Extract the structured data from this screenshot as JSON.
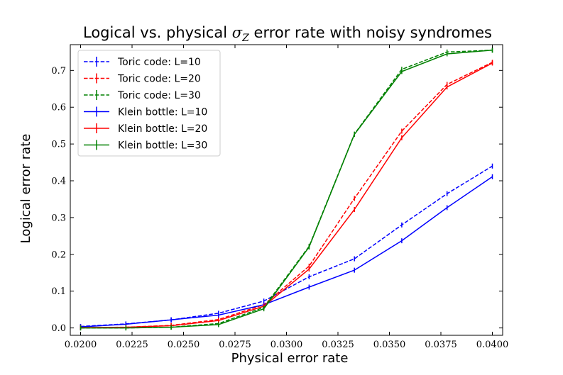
{
  "chart_data": {
    "type": "line",
    "title": "Logical vs. physical σZ error rate with noisy syndromes",
    "title_main": "Logical vs. physical ",
    "title_symbol": "σ",
    "title_subscript": "Z",
    "title_rest": " error rate with noisy syndromes",
    "xlabel": "Physical error rate",
    "ylabel": "Logical error rate",
    "xlim": [
      0.0195,
      0.0405
    ],
    "ylim": [
      -0.02,
      0.77
    ],
    "xticks": [
      0.02,
      0.0225,
      0.025,
      0.0275,
      0.03,
      0.0325,
      0.035,
      0.0375,
      0.04
    ],
    "xtick_labels": [
      "0.0200",
      "0.0225",
      "0.0250",
      "0.0275",
      "0.0300",
      "0.0325",
      "0.0350",
      "0.0375",
      "0.0400"
    ],
    "yticks": [
      0.0,
      0.1,
      0.2,
      0.3,
      0.4,
      0.5,
      0.6,
      0.7
    ],
    "ytick_labels": [
      "0.0",
      "0.1",
      "0.2",
      "0.3",
      "0.4",
      "0.5",
      "0.6",
      "0.7"
    ],
    "legend_position": "top-left",
    "x": [
      0.02,
      0.0222,
      0.0244,
      0.0267,
      0.0289,
      0.0311,
      0.0333,
      0.0356,
      0.0378,
      0.04
    ],
    "series": [
      {
        "name": "Toric code: L=10",
        "color": "#0000ff",
        "style": "dashed",
        "values": [
          0.004,
          0.011,
          0.022,
          0.04,
          0.073,
          0.139,
          0.188,
          0.28,
          0.365,
          0.44
        ]
      },
      {
        "name": "Toric code: L=20",
        "color": "#ff0000",
        "style": "dashed",
        "values": [
          0.001,
          0.002,
          0.007,
          0.023,
          0.063,
          0.168,
          0.352,
          0.535,
          0.662,
          0.722
        ]
      },
      {
        "name": "Toric code: L=30",
        "color": "#008000",
        "style": "dashed",
        "values": [
          0.0,
          0.0,
          0.002,
          0.012,
          0.056,
          0.222,
          0.527,
          0.703,
          0.75,
          0.755
        ]
      },
      {
        "name": "Klein bottle: L=10",
        "color": "#0000ff",
        "style": "solid",
        "values": [
          0.003,
          0.01,
          0.022,
          0.035,
          0.063,
          0.111,
          0.157,
          0.237,
          0.327,
          0.411
        ]
      },
      {
        "name": "Klein bottle: L=20",
        "color": "#ff0000",
        "style": "solid",
        "values": [
          0.001,
          0.002,
          0.006,
          0.02,
          0.059,
          0.16,
          0.322,
          0.517,
          0.655,
          0.72
        ]
      },
      {
        "name": "Klein bottle: L=30",
        "color": "#008000",
        "style": "solid",
        "values": [
          0.0,
          0.0,
          0.002,
          0.009,
          0.052,
          0.22,
          0.526,
          0.697,
          0.745,
          0.755
        ]
      }
    ]
  }
}
